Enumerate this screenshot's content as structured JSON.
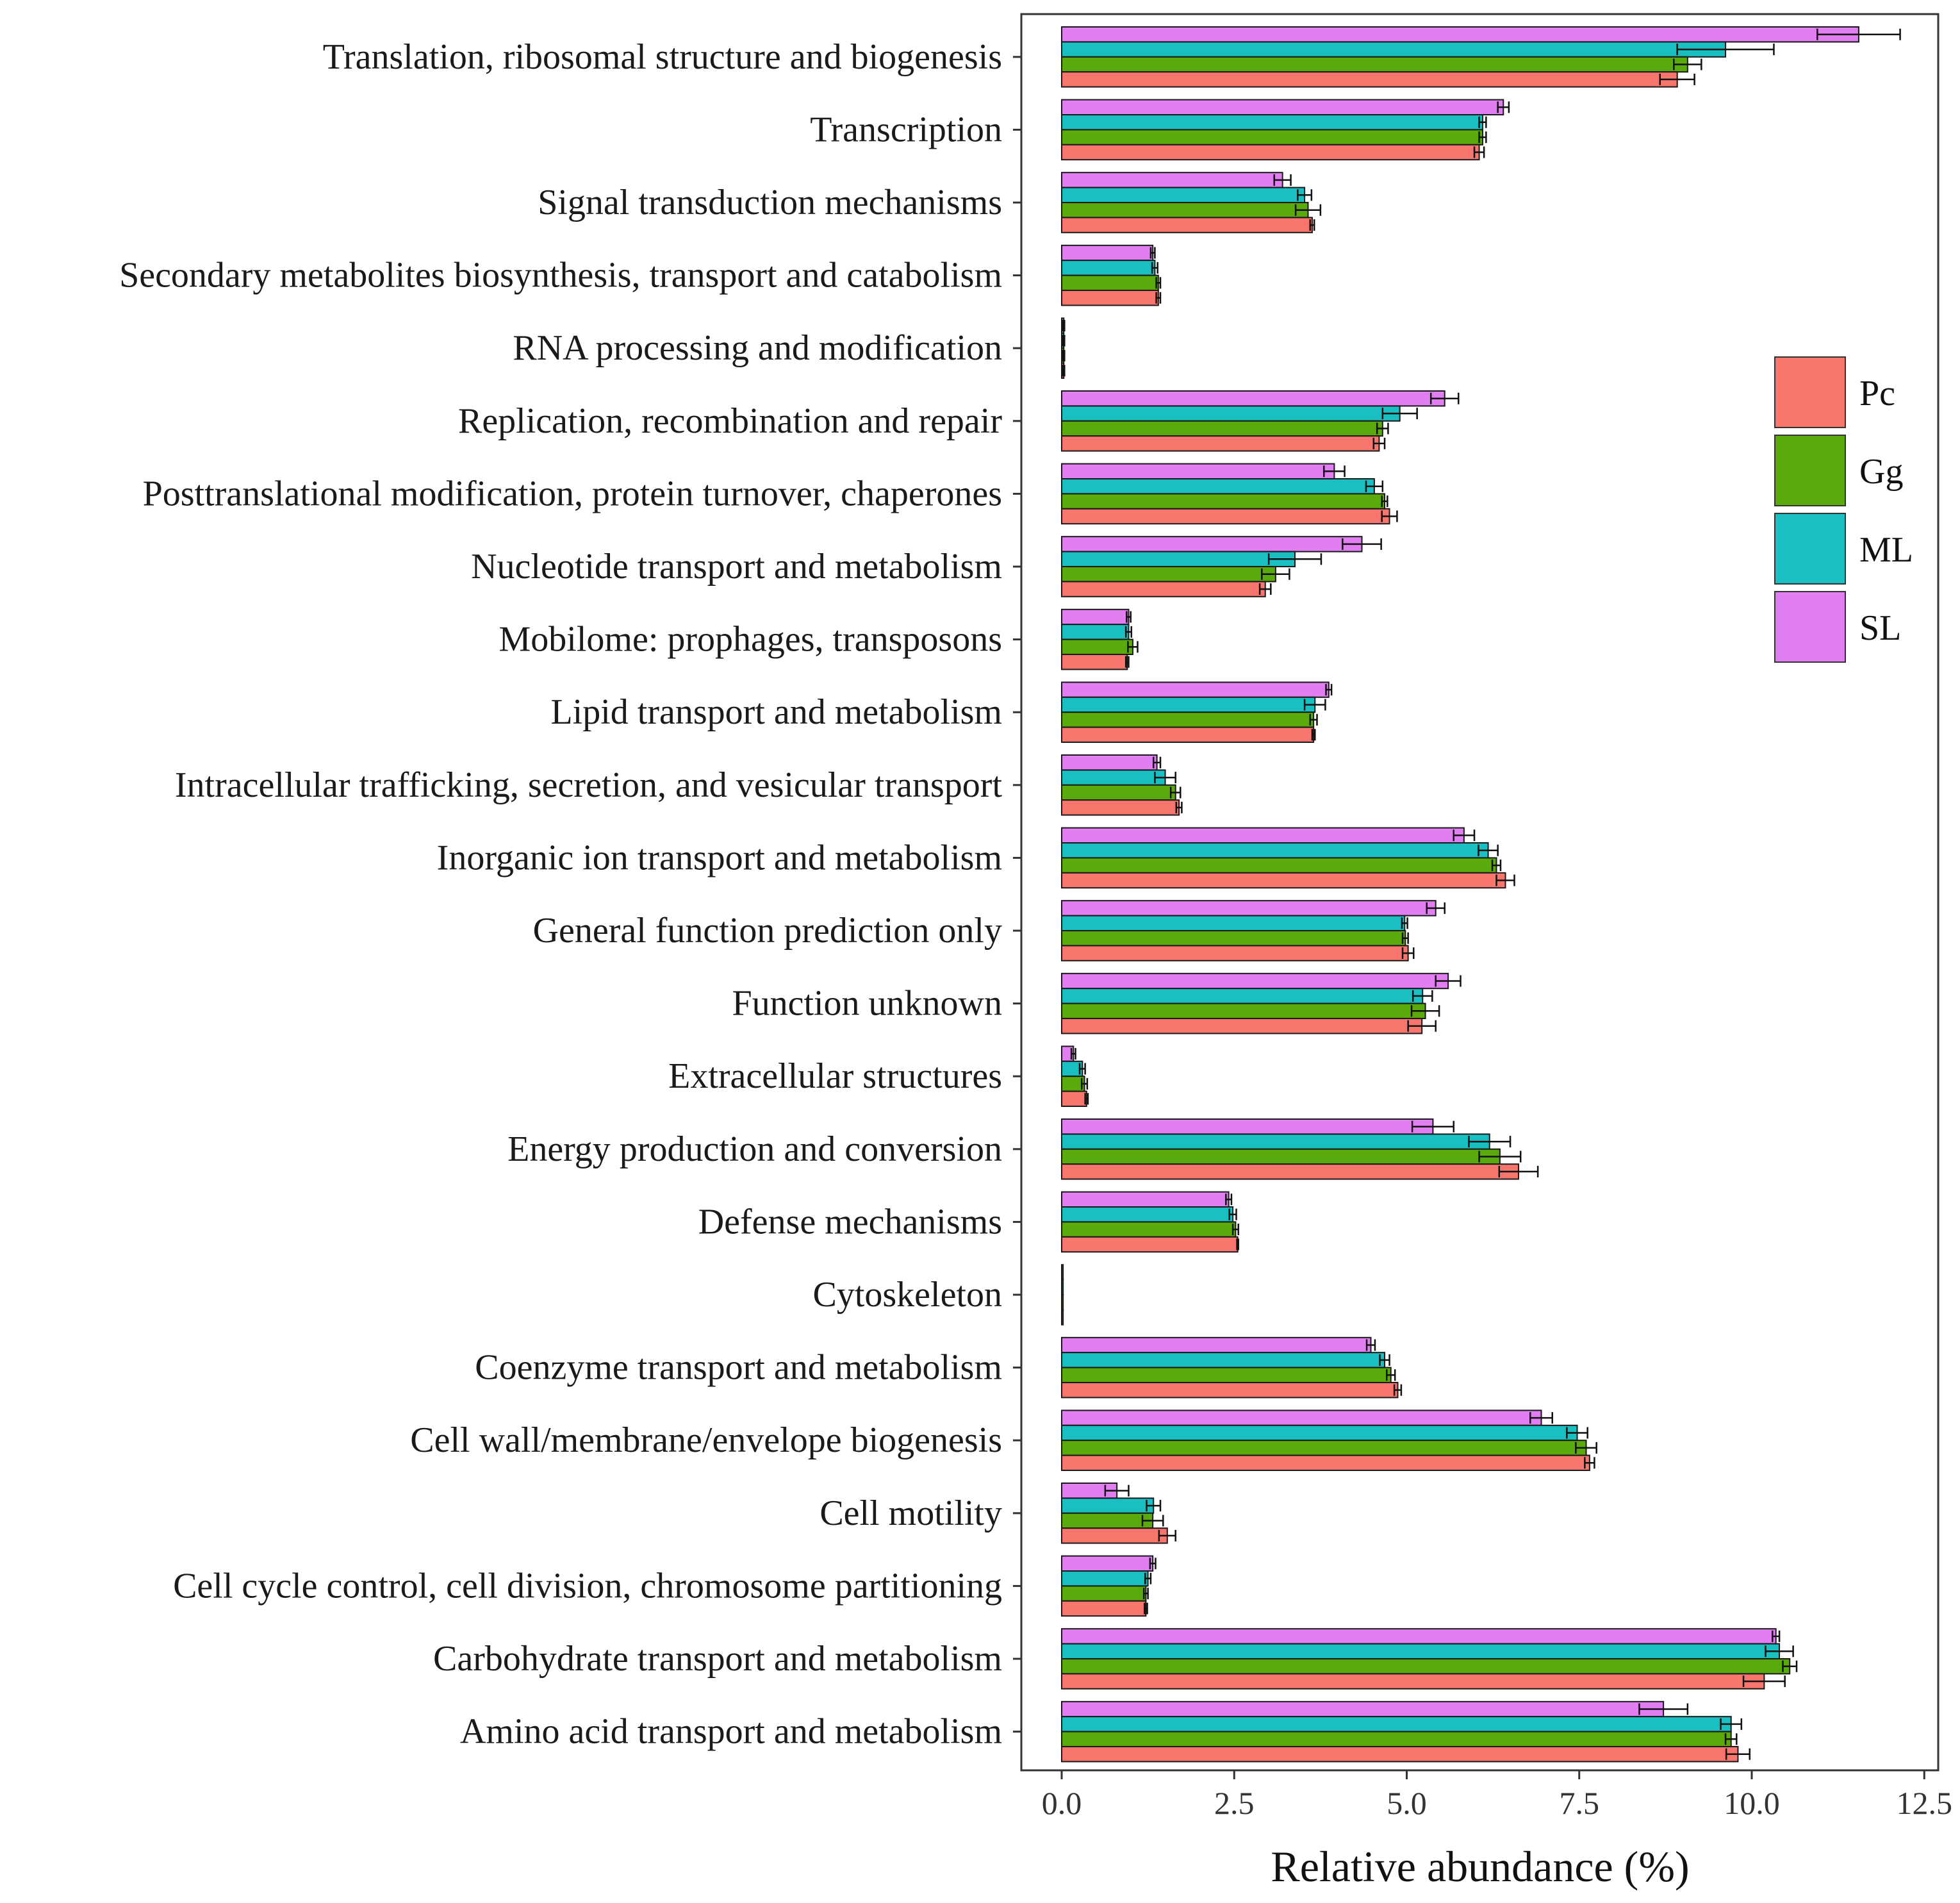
{
  "chart_data": {
    "type": "bar",
    "orientation": "horizontal",
    "title": "",
    "xlabel": "Relative abundance (%)",
    "ylabel": "",
    "xlim": [
      -0.6,
      12.7
    ],
    "x_ticks": [
      "0.0",
      "2.5",
      "5.0",
      "7.5",
      "10.0",
      "12.5"
    ],
    "x_tick_values": [
      0,
      2.5,
      5,
      7.5,
      10,
      12.5
    ],
    "grid": false,
    "legend_position": "right",
    "categories": [
      "Translation, ribosomal structure and biogenesis",
      "Transcription",
      "Signal transduction mechanisms",
      "Secondary metabolites biosynthesis, transport and catabolism",
      "RNA processing and modification",
      "Replication, recombination and repair",
      "Posttranslational modification, protein turnover, chaperones",
      "Nucleotide transport and metabolism",
      "Mobilome: prophages, transposons",
      "Lipid transport and metabolism",
      "Intracellular trafficking, secretion, and vesicular transport",
      "Inorganic ion transport and metabolism",
      "General function prediction only",
      "Function unknown",
      "Extracellular structures",
      "Energy production and conversion",
      "Defense mechanisms",
      "Cytoskeleton",
      "Coenzyme transport and metabolism",
      "Cell wall/membrane/envelope biogenesis",
      "Cell motility",
      "Cell cycle control, cell division, chromosome partitioning",
      "Carbohydrate transport and metabolism",
      "Amino acid transport and metabolism"
    ],
    "series": [
      {
        "name": "SL",
        "color": "#E07EF2",
        "values": [
          11.55,
          6.4,
          3.2,
          1.32,
          0.03,
          5.55,
          3.95,
          4.35,
          0.97,
          3.87,
          1.38,
          5.83,
          5.42,
          5.6,
          0.17,
          5.38,
          2.42,
          0.02,
          4.48,
          6.95,
          0.8,
          1.32,
          10.35,
          8.72
        ],
        "errors": [
          0.6,
          0.08,
          0.12,
          0.03,
          0.01,
          0.2,
          0.15,
          0.28,
          0.03,
          0.04,
          0.05,
          0.15,
          0.13,
          0.18,
          0.03,
          0.3,
          0.04,
          0.0,
          0.06,
          0.16,
          0.17,
          0.04,
          0.05,
          0.35
        ]
      },
      {
        "name": "ML",
        "color": "#1ABFC2",
        "values": [
          9.62,
          6.1,
          3.52,
          1.35,
          0.03,
          4.9,
          4.53,
          3.38,
          0.97,
          3.67,
          1.5,
          6.18,
          4.97,
          5.23,
          0.3,
          6.2,
          2.48,
          0.02,
          4.68,
          7.47,
          1.33,
          1.25,
          10.4,
          9.7
        ],
        "errors": [
          0.7,
          0.05,
          0.1,
          0.04,
          0.01,
          0.25,
          0.12,
          0.38,
          0.04,
          0.15,
          0.15,
          0.14,
          0.04,
          0.14,
          0.04,
          0.3,
          0.05,
          0.0,
          0.07,
          0.15,
          0.1,
          0.04,
          0.2,
          0.15
        ]
      },
      {
        "name": "Gg",
        "color": "#5BAA0B",
        "values": [
          9.07,
          6.1,
          3.57,
          1.4,
          0.03,
          4.65,
          4.68,
          3.1,
          1.03,
          3.65,
          1.65,
          6.3,
          4.98,
          5.27,
          0.33,
          6.35,
          2.52,
          0.02,
          4.77,
          7.6,
          1.32,
          1.22,
          10.55,
          9.7
        ],
        "errors": [
          0.2,
          0.05,
          0.18,
          0.03,
          0.01,
          0.08,
          0.04,
          0.2,
          0.07,
          0.05,
          0.07,
          0.06,
          0.04,
          0.2,
          0.04,
          0.3,
          0.04,
          0.0,
          0.06,
          0.15,
          0.15,
          0.03,
          0.1,
          0.08
        ]
      },
      {
        "name": "Pc",
        "color": "#F8766D",
        "values": [
          8.92,
          6.05,
          3.63,
          1.4,
          0.03,
          4.6,
          4.75,
          2.95,
          0.95,
          3.65,
          1.7,
          6.43,
          5.02,
          5.22,
          0.36,
          6.62,
          2.55,
          0.02,
          4.87,
          7.65,
          1.53,
          1.22,
          10.18,
          9.8
        ],
        "errors": [
          0.25,
          0.07,
          0.03,
          0.03,
          0.01,
          0.08,
          0.11,
          0.08,
          0.02,
          0.02,
          0.04,
          0.13,
          0.08,
          0.2,
          0.02,
          0.28,
          0.01,
          0.0,
          0.05,
          0.07,
          0.12,
          0.02,
          0.3,
          0.17
        ]
      }
    ],
    "legend": [
      {
        "name": "Pc",
        "color": "#F8766D"
      },
      {
        "name": "Gg",
        "color": "#5BAA0B"
      },
      {
        "name": "ML",
        "color": "#1ABFC2"
      },
      {
        "name": "SL",
        "color": "#E07EF2"
      }
    ]
  }
}
